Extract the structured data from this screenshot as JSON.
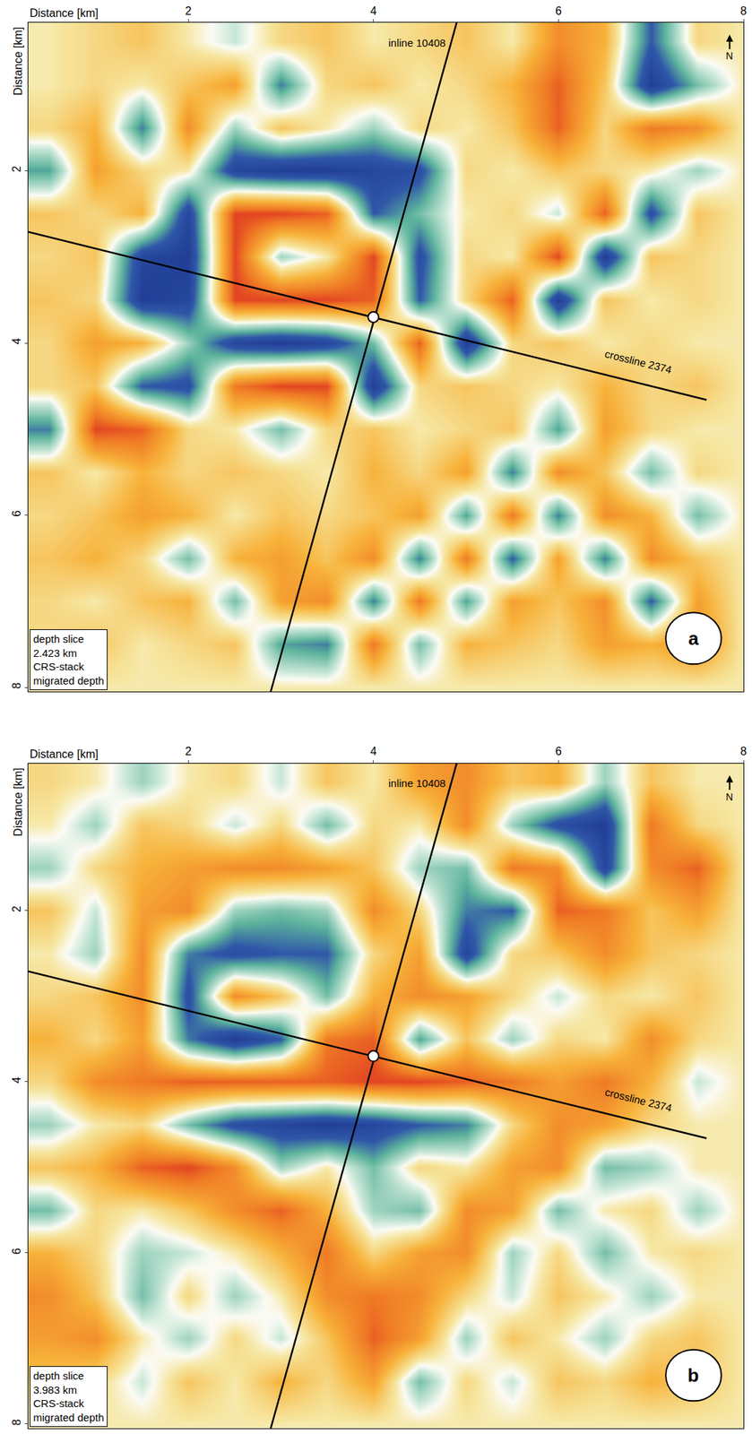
{
  "chart_data": [
    {
      "type": "heatmap",
      "label": "a",
      "x_label": "Distance [km]",
      "y_label": "Distance [km]",
      "north": "N",
      "note": [
        "depth slice",
        "2.423 km",
        "CRS-stack",
        "migrated depth"
      ],
      "xlim": [
        0.27,
        8.0
      ],
      "ylim": [
        8.05,
        0.28
      ],
      "xticks": [
        2,
        4,
        6,
        8
      ],
      "yticks": [
        2,
        4,
        6,
        8
      ],
      "zlim": [
        -1,
        1
      ],
      "x": [
        0.5,
        1.0,
        1.5,
        2.0,
        2.5,
        3.0,
        3.5,
        4.0,
        4.5,
        5.0,
        5.5,
        6.0,
        6.5,
        7.0,
        7.5,
        8.0
      ],
      "y": [
        0.5,
        1.0,
        1.5,
        2.0,
        2.5,
        3.0,
        3.5,
        4.0,
        4.5,
        5.0,
        5.5,
        6.0,
        6.5,
        7.0,
        7.5,
        8.0
      ],
      "z": [
        [
          0.1,
          0.2,
          0.3,
          0.1,
          -0.1,
          0.2,
          0.3,
          0.1,
          0.2,
          0.3,
          0.1,
          0.6,
          0.4,
          -0.6,
          0.2,
          0.1
        ],
        [
          0.1,
          0.2,
          0.1,
          0.3,
          0.5,
          -0.5,
          0.2,
          0.3,
          0.1,
          0.2,
          0.4,
          0.8,
          0.3,
          -0.9,
          -0.3,
          0.1
        ],
        [
          0.2,
          0.4,
          -0.5,
          0.6,
          -0.2,
          0.3,
          0.1,
          -0.2,
          0.2,
          0.1,
          0.3,
          0.8,
          0.2,
          0.7,
          0.6,
          0.1
        ],
        [
          -0.4,
          0.5,
          0.2,
          0.1,
          -0.8,
          -0.9,
          -0.9,
          -0.8,
          -0.7,
          0.2,
          0.1,
          0.3,
          0.2,
          0.1,
          -0.2,
          0.1
        ],
        [
          0.3,
          0.2,
          0.4,
          -0.8,
          0.9,
          0.9,
          0.8,
          -0.6,
          -0.3,
          0.1,
          0.2,
          -0.1,
          0.8,
          -0.7,
          0.3,
          0.1
        ],
        [
          0.2,
          0.3,
          -0.8,
          -0.9,
          0.9,
          -0.2,
          0.1,
          0.9,
          -0.7,
          0.2,
          0.1,
          0.9,
          -0.9,
          0.3,
          0.2,
          0.1
        ],
        [
          0.3,
          0.2,
          -0.9,
          -0.8,
          0.9,
          0.9,
          0.9,
          0.8,
          -0.6,
          0.2,
          0.8,
          -0.9,
          0.3,
          0.1,
          0.2,
          0.1
        ],
        [
          0.2,
          0.5,
          0.4,
          -0.2,
          -0.8,
          -0.9,
          -0.8,
          -0.3,
          0.8,
          -0.9,
          0.2,
          0.3,
          0.1,
          0.2,
          0.1,
          0.1
        ],
        [
          0.2,
          0.3,
          -0.6,
          -0.7,
          0.7,
          0.9,
          0.9,
          -0.9,
          0.2,
          0.3,
          0.2,
          0.1,
          0.4,
          0.2,
          0.3,
          0.1
        ],
        [
          -0.5,
          0.9,
          0.8,
          0.2,
          0.1,
          -0.3,
          0.2,
          0.3,
          0.1,
          0.2,
          0.3,
          -0.4,
          0.5,
          0.2,
          0.1,
          0.1
        ],
        [
          0.3,
          0.1,
          0.4,
          0.2,
          0.3,
          0.2,
          0.1,
          0.4,
          0.2,
          0.5,
          -0.5,
          0.6,
          0.3,
          -0.3,
          0.2,
          0.1
        ],
        [
          0.2,
          0.3,
          0.5,
          0.4,
          0.1,
          0.3,
          0.2,
          0.3,
          0.5,
          -0.4,
          0.7,
          -0.5,
          0.6,
          0.4,
          -0.3,
          0.1
        ],
        [
          0.3,
          0.4,
          0.2,
          -0.3,
          0.4,
          0.5,
          0.3,
          0.6,
          -0.5,
          0.7,
          -0.6,
          0.5,
          -0.5,
          0.6,
          0.3,
          0.1
        ],
        [
          0.2,
          0.1,
          0.3,
          0.4,
          -0.3,
          0.5,
          0.6,
          -0.5,
          0.7,
          -0.4,
          0.5,
          0.3,
          0.6,
          -0.6,
          0.5,
          0.1
        ],
        [
          0.2,
          0.3,
          0.1,
          0.2,
          0.3,
          -0.4,
          -0.5,
          0.7,
          -0.3,
          0.4,
          0.3,
          0.2,
          0.5,
          0.4,
          0.6,
          0.1
        ],
        [
          0.1,
          0.1,
          0.1,
          0.1,
          0.1,
          0.1,
          0.1,
          0.1,
          0.1,
          0.1,
          0.1,
          0.1,
          0.1,
          0.1,
          0.1,
          0.1
        ]
      ],
      "lines": [
        {
          "name": "inline 10408",
          "x": [
            4.9,
            2.89
          ],
          "y": [
            0.28,
            8.05
          ]
        },
        {
          "name": "crossline 2374",
          "x": [
            0.27,
            7.6
          ],
          "y": [
            2.71,
            4.66
          ]
        }
      ],
      "intersection": {
        "x": 4.0,
        "y": 3.7
      }
    },
    {
      "type": "heatmap",
      "label": "b",
      "x_label": "Distance [km]",
      "y_label": "Distance [km]",
      "north": "N",
      "note": [
        "depth slice",
        "3.983 km",
        "CRS-stack",
        "migrated depth"
      ],
      "xlim": [
        0.27,
        8.0
      ],
      "ylim": [
        8.05,
        0.28
      ],
      "xticks": [
        2,
        4,
        6,
        8
      ],
      "yticks": [
        2,
        4,
        6,
        8
      ],
      "zlim": [
        -1,
        1
      ],
      "x": [
        0.5,
        1.0,
        1.5,
        2.0,
        2.5,
        3.0,
        3.5,
        4.0,
        4.5,
        5.0,
        5.5,
        6.0,
        6.5,
        7.0,
        7.5,
        8.0
      ],
      "y": [
        0.5,
        1.0,
        1.5,
        2.0,
        2.5,
        3.0,
        3.5,
        4.0,
        4.5,
        5.0,
        5.5,
        6.0,
        6.5,
        7.0,
        7.5,
        8.0
      ],
      "z": [
        [
          0.2,
          0.1,
          -0.2,
          0.1,
          0.2,
          -0.1,
          0.3,
          0.1,
          0.5,
          0.6,
          0.3,
          0.4,
          -0.2,
          0.3,
          0.1,
          0.1
        ],
        [
          0.1,
          -0.2,
          0.3,
          0.2,
          -0.1,
          0.2,
          -0.3,
          0.2,
          0.1,
          0.6,
          -0.2,
          -0.7,
          -0.9,
          0.7,
          0.2,
          0.1
        ],
        [
          -0.2,
          0.2,
          0.4,
          0.5,
          0.6,
          0.6,
          0.5,
          0.3,
          -0.2,
          -0.3,
          0.7,
          0.6,
          -0.8,
          0.6,
          0.8,
          0.1
        ],
        [
          0.3,
          -0.1,
          0.5,
          0.6,
          -0.2,
          -0.3,
          -0.2,
          0.6,
          0.2,
          -0.5,
          -0.6,
          0.8,
          0.7,
          0.3,
          0.5,
          0.1
        ],
        [
          0.1,
          -0.2,
          0.6,
          -0.5,
          -0.7,
          -0.6,
          -0.6,
          0.2,
          0.5,
          -0.8,
          0.2,
          0.3,
          0.6,
          0.3,
          0.2,
          0.1
        ],
        [
          0.2,
          0.3,
          0.6,
          -0.7,
          0.6,
          0.3,
          -0.3,
          0.4,
          0.6,
          0.5,
          0.2,
          -0.1,
          0.2,
          0.1,
          0.3,
          0.1
        ],
        [
          0.4,
          0.2,
          0.5,
          -0.5,
          -0.9,
          -0.6,
          0.7,
          0.8,
          -0.4,
          0.3,
          -0.2,
          0.2,
          0.1,
          0.6,
          0.2,
          0.1
        ],
        [
          0.2,
          0.6,
          0.7,
          0.8,
          0.8,
          0.8,
          0.8,
          0.9,
          0.9,
          0.8,
          0.7,
          0.5,
          0.7,
          0.4,
          -0.1,
          0.1
        ],
        [
          -0.2,
          0.1,
          0.2,
          -0.3,
          -0.7,
          -0.8,
          -0.9,
          -0.8,
          -0.6,
          -0.5,
          0.2,
          0.6,
          0.5,
          0.2,
          0.1,
          0.1
        ],
        [
          0.3,
          0.4,
          0.8,
          0.9,
          0.6,
          -0.2,
          0.1,
          -0.3,
          0.2,
          0.1,
          0.5,
          0.6,
          -0.3,
          -0.2,
          0.1,
          0.1
        ],
        [
          -0.3,
          0.2,
          0.1,
          0.3,
          0.6,
          0.8,
          0.4,
          -0.2,
          -0.3,
          0.6,
          0.5,
          -0.3,
          0.1,
          0.2,
          -0.2,
          0.1
        ],
        [
          0.4,
          0.2,
          -0.2,
          -0.1,
          0.1,
          0.4,
          0.7,
          0.2,
          0.5,
          0.6,
          -0.2,
          0.2,
          -0.3,
          0.1,
          0.2,
          0.1
        ],
        [
          0.6,
          0.3,
          -0.3,
          0.2,
          -0.2,
          0.1,
          0.6,
          0.7,
          0.6,
          0.2,
          -0.1,
          0.3,
          0.1,
          -0.2,
          0.1,
          0.1
        ],
        [
          0.5,
          0.6,
          0.1,
          -0.2,
          0.2,
          -0.1,
          0.3,
          0.8,
          0.5,
          -0.2,
          0.3,
          0.1,
          -0.2,
          0.2,
          0.3,
          0.1
        ],
        [
          0.3,
          0.2,
          -0.1,
          0.3,
          0.1,
          0.4,
          0.2,
          0.5,
          -0.3,
          0.2,
          -0.1,
          0.3,
          0.2,
          0.4,
          0.3,
          0.1
        ],
        [
          0.1,
          0.1,
          0.1,
          0.1,
          0.1,
          0.1,
          0.1,
          0.1,
          0.1,
          0.1,
          0.1,
          0.1,
          0.1,
          0.1,
          0.1,
          0.1
        ]
      ],
      "lines": [
        {
          "name": "inline 10408",
          "x": [
            4.9,
            2.89
          ],
          "y": [
            0.28,
            8.05
          ]
        },
        {
          "name": "crossline 2374",
          "x": [
            0.27,
            7.6
          ],
          "y": [
            2.71,
            4.66
          ]
        }
      ],
      "intersection": {
        "x": 4.0,
        "y": 3.7
      }
    }
  ]
}
